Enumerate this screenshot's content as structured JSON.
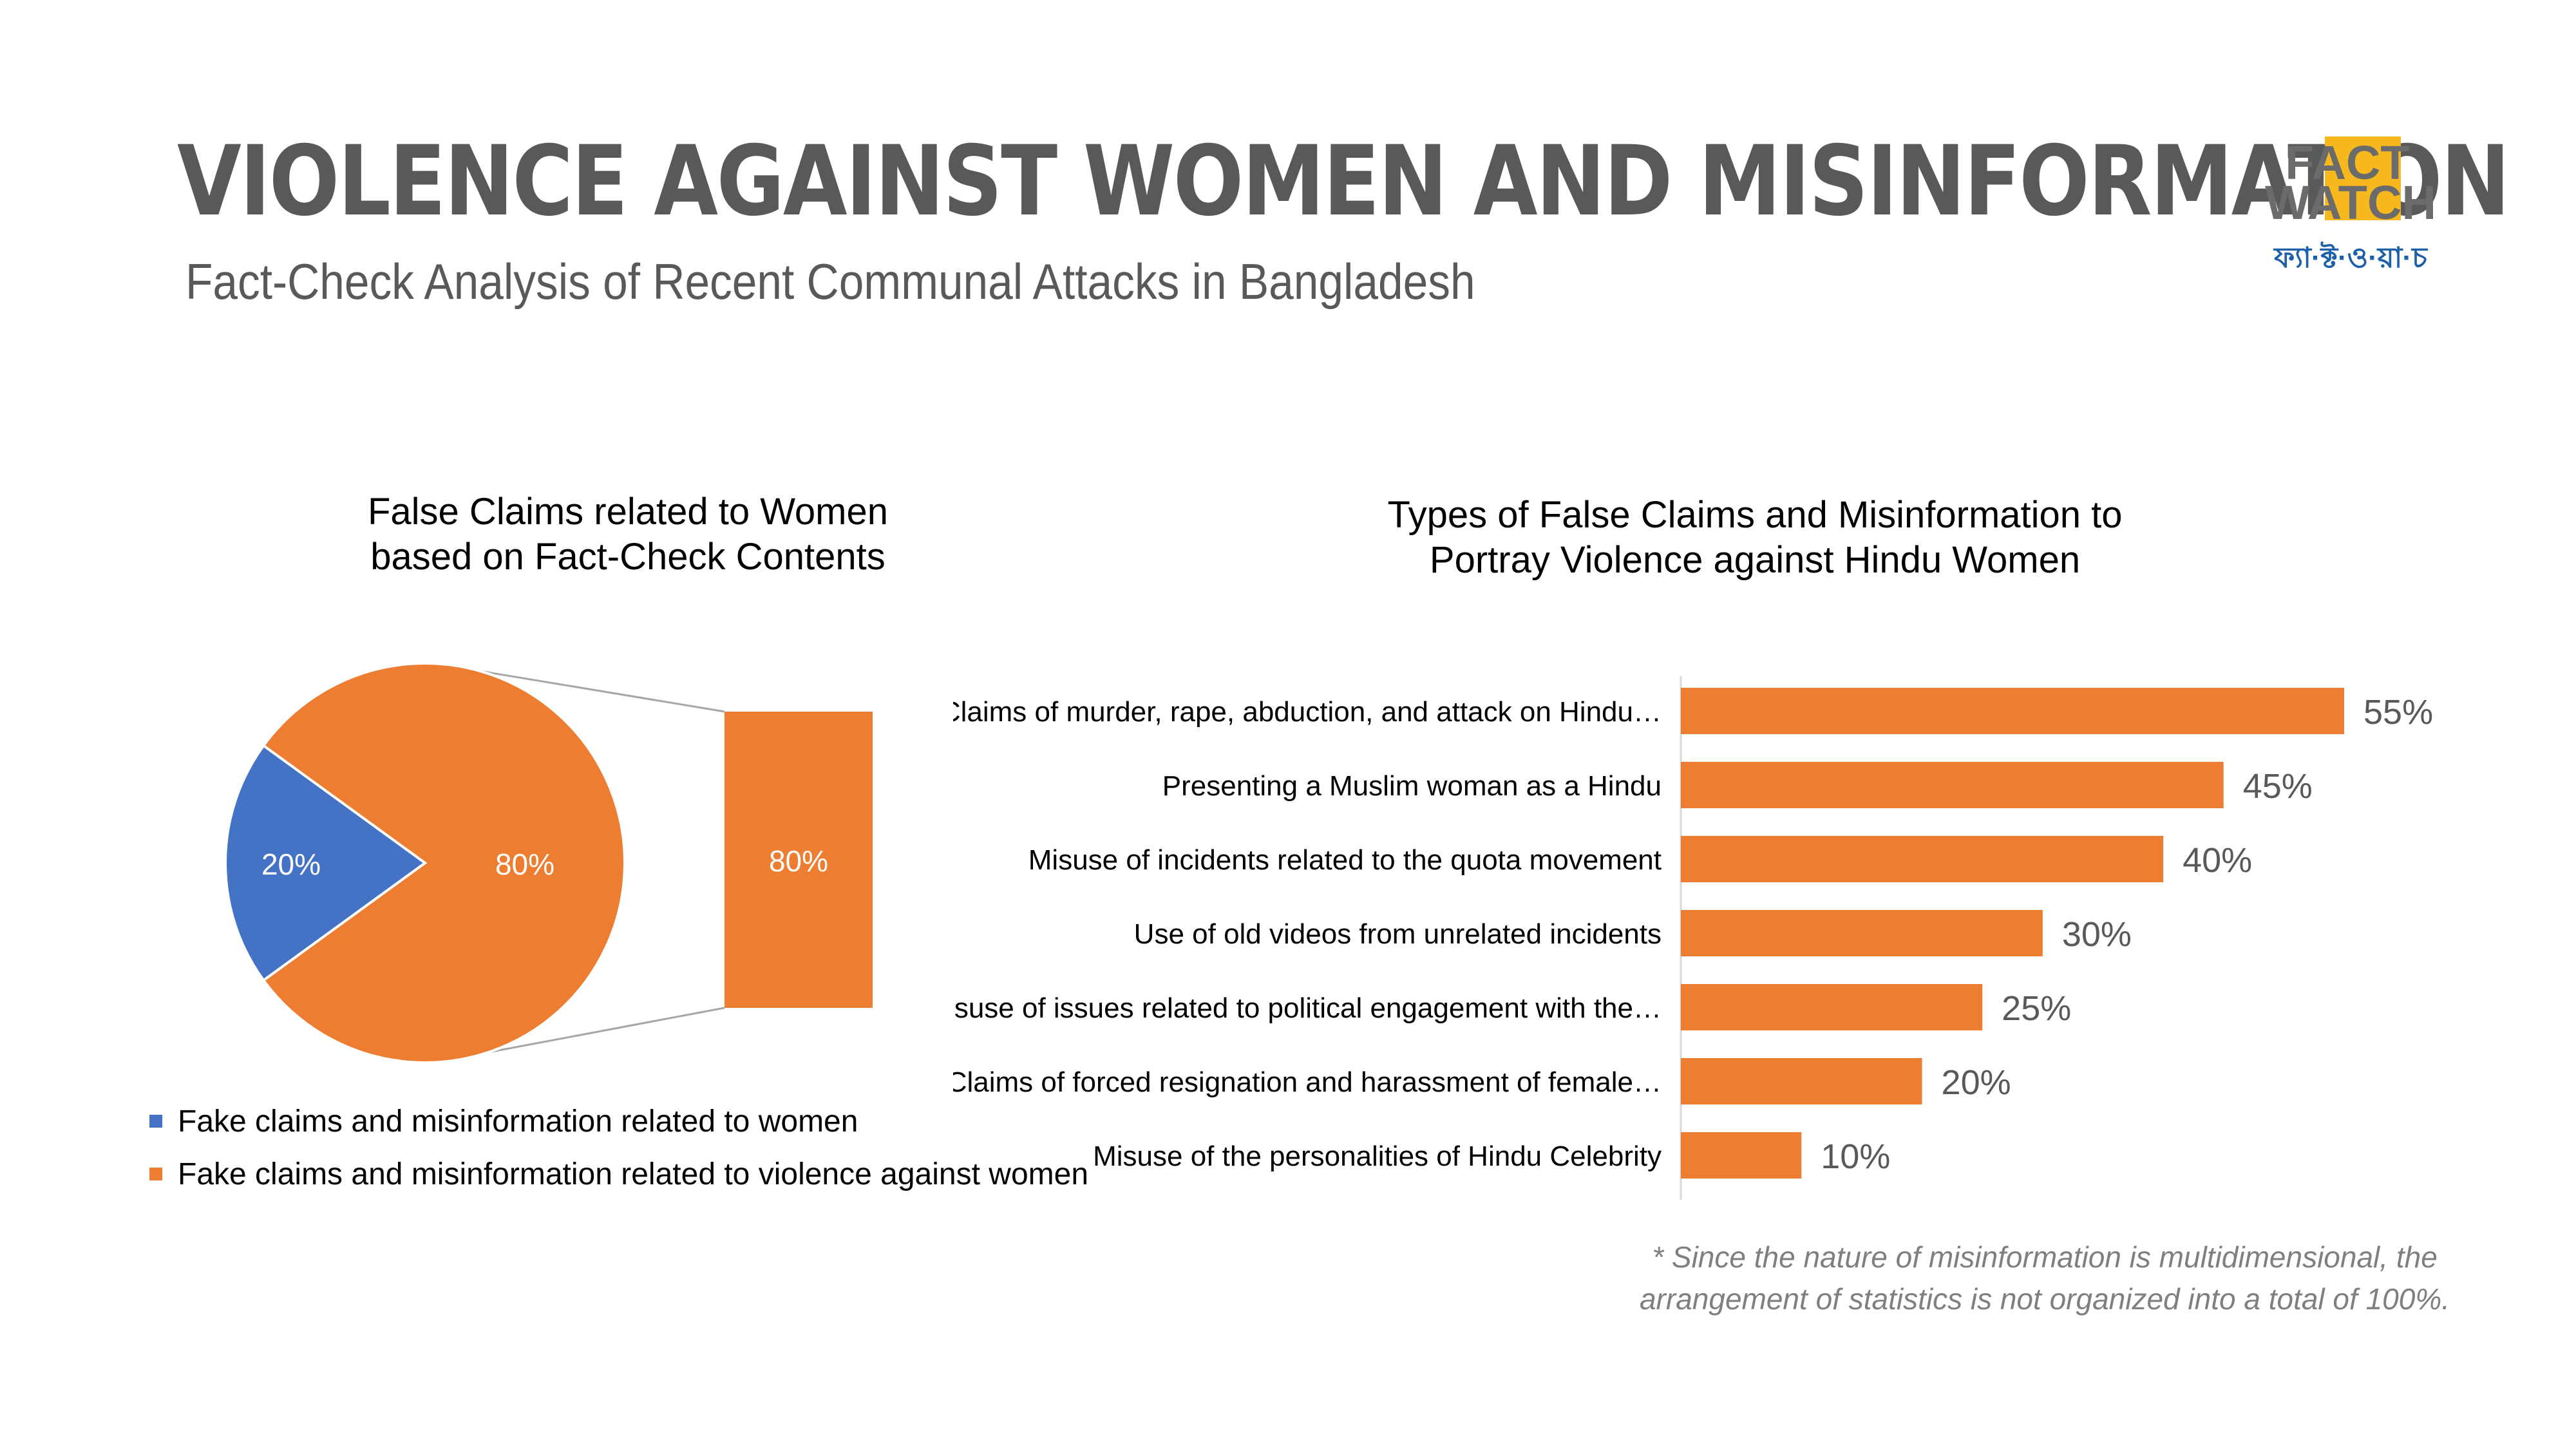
{
  "header": {
    "title": "VIOLENCE AGAINST WOMEN AND MISINFORMATION",
    "subtitle": "Fact-Check Analysis of Recent Communal Attacks in Bangladesh"
  },
  "logo": {
    "line1": "FACT",
    "line2": "WATCH",
    "bangla": "ফ্যা·ক্ট·ও·য়া·চ",
    "colors": {
      "gray": "#6b6b6b",
      "yellow": "#f6b81c",
      "blue": "#1d5fa9"
    }
  },
  "colors": {
    "blue": "#4472C4",
    "orange": "#ED7D31",
    "connector": "#a6a6a6",
    "axis": "#d9d9d9"
  },
  "chart_data": [
    {
      "type": "pie",
      "title_lines": [
        "False Claims related to Women",
        "based on Fact-Check Contents"
      ],
      "slices": [
        {
          "label": "Fake claims and misinformation related to women",
          "value": 20,
          "display": "20%",
          "color": "#4472C4"
        },
        {
          "label": "Fake claims and misinformation related to violence against women",
          "value": 80,
          "display": "80%",
          "color": "#ED7D31"
        }
      ],
      "breakout": {
        "label": "80%",
        "color": "#ED7D31"
      },
      "legend_position": "bottom-left"
    },
    {
      "type": "bar",
      "orientation": "horizontal",
      "title_lines": [
        "Types of False Claims and Misinformation to",
        "Portray Violence against Hindu Women"
      ],
      "categories": [
        "Claims of murder, rape, abduction, and attack on Hindu…",
        "Presenting a Muslim woman as a Hindu",
        "Misuse of incidents related to the quota movement",
        "Use of old videos from unrelated incidents",
        "Misuse of issues related to political engagement with the…",
        "Claims of forced resignation and harassment of female…",
        "Misuse of the personalities of Hindu Celebrity"
      ],
      "values": [
        55,
        45,
        40,
        30,
        25,
        20,
        10
      ],
      "value_labels": [
        "55%",
        "45%",
        "40%",
        "30%",
        "25%",
        "20%",
        "10%"
      ],
      "xlim": [
        0,
        55
      ],
      "grid": false,
      "color": "#ED7D31"
    }
  ],
  "footnote": [
    "* Since the nature of misinformation is multidimensional, the",
    "arrangement of statistics is not organized into a total of 100%."
  ]
}
